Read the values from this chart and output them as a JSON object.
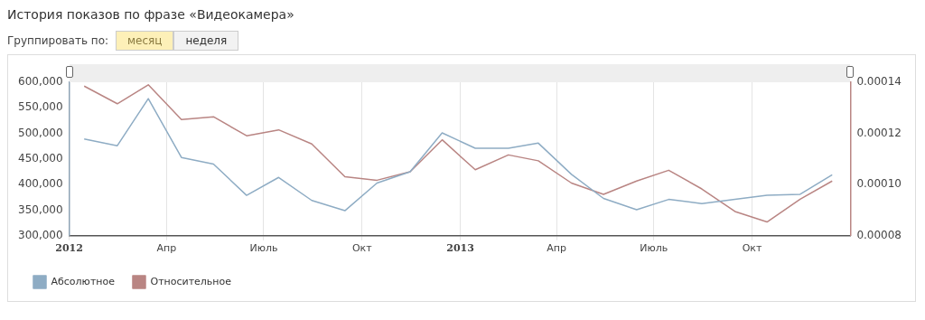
{
  "chart_data": {
    "type": "line",
    "title": "История показов по фразе «Видеокамера»",
    "annotations": [
      "Группировать по:",
      "месяц",
      "неделя"
    ],
    "x": [
      "2012-01-15",
      "2012-02-15",
      "2012-03-15",
      "2012-04-15",
      "2012-05-15",
      "2012-06-15",
      "2012-07-15",
      "2012-08-15",
      "2012-09-15",
      "2012-10-15",
      "2012-11-15",
      "2012-12-15",
      "2013-01-15",
      "2013-02-15",
      "2013-03-15",
      "2013-04-15",
      "2013-05-15",
      "2013-06-15",
      "2013-07-15",
      "2013-08-15",
      "2013-09-15",
      "2013-10-15",
      "2013-11-15",
      "2013-12-15"
    ],
    "series": [
      {
        "name": "Абсолютное",
        "color": "#8eacc4",
        "values": [
          489000,
          476000,
          568000,
          453000,
          440000,
          379000,
          414000,
          369000,
          349000,
          403000,
          425000,
          501000,
          471000,
          471000,
          481000,
          420000,
          373000,
          351000,
          371000,
          363000,
          371000,
          379000,
          381000,
          419000
        ]
      },
      {
        "name": "Относительное",
        "color": "#b98583",
        "axis": "y2",
        "values": [
          0.0001385,
          0.0001316,
          0.000139,
          0.0001254,
          0.0001265,
          0.0001191,
          0.0001214,
          0.0001159,
          0.0001031,
          0.0001017,
          0.000105,
          0.0001175,
          0.0001058,
          0.0001116,
          0.0001093,
          0.0001006,
          9.62e-05,
          0.0001014,
          0.0001056,
          9.83e-05,
          8.95e-05,
          8.54e-05,
          9.43e-05,
          0.0001014
        ]
      }
    ],
    "xlim": [
      "2012-01-01",
      "2014-01-01"
    ],
    "xticks": [
      {
        "value": "2012-01-01",
        "label": "2012"
      },
      {
        "value": "2012-04-01",
        "label": "Апр"
      },
      {
        "value": "2012-07-01",
        "label": "Июль"
      },
      {
        "value": "2012-10-01",
        "label": "Окт"
      },
      {
        "value": "2013-01-01",
        "label": "2013"
      },
      {
        "value": "2013-04-01",
        "label": "Апр"
      },
      {
        "value": "2013-07-01",
        "label": "Июль"
      },
      {
        "value": "2013-10-01",
        "label": "Окт"
      }
    ],
    "ylim": [
      300000,
      600000
    ],
    "yticks": [
      {
        "value": 300000,
        "label": "300,000"
      },
      {
        "value": 350000,
        "label": "350,000"
      },
      {
        "value": 400000,
        "label": "400,000"
      },
      {
        "value": 450000,
        "label": "450,000"
      },
      {
        "value": 500000,
        "label": "500,000"
      },
      {
        "value": 550000,
        "label": "550,000"
      },
      {
        "value": 600000,
        "label": "600,000"
      }
    ],
    "y2lim": [
      8e-05,
      0.00014
    ],
    "y2ticks": [
      {
        "value": 8e-05,
        "label": "0.00008"
      },
      {
        "value": 0.0001,
        "label": "0.00010"
      },
      {
        "value": 0.00012,
        "label": "0.00012"
      },
      {
        "value": 0.00014,
        "label": "0.00014"
      }
    ],
    "grid": "x",
    "legend": "bottom left",
    "marker": "none",
    "line_style": "solid"
  }
}
